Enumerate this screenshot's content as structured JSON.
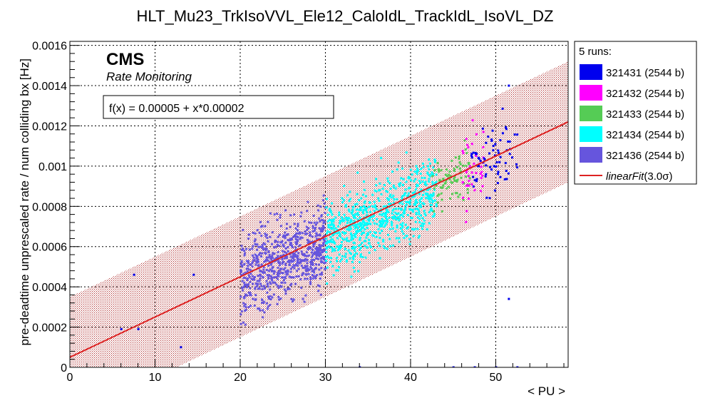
{
  "chart_data": {
    "type": "scatter",
    "title": "HLT_Mu23_TrkIsoVVL_Ele12_CaloIdL_TrackIdL_IsoVL_DZ",
    "xlabel": "< PU >",
    "ylabel": "pre-deadtime unprescaled rate / num colliding bx [Hz]",
    "xlim": [
      0,
      58.5
    ],
    "ylim": [
      0,
      0.00162
    ],
    "x_ticks": [
      0,
      10,
      20,
      30,
      40,
      50
    ],
    "y_ticks": [
      0,
      0.0002,
      0.0004,
      0.0006,
      0.0008,
      0.001,
      0.0012,
      0.0014,
      0.0016
    ],
    "y_tick_labels": [
      "0",
      "0.0002",
      "0.0004",
      "0.0006",
      "0.0008",
      "0.001",
      "0.0012",
      "0.0014",
      "0.0016"
    ],
    "grid": true,
    "cms_label": "CMS",
    "cms_sublabel": "Rate Monitoring",
    "fit_box": "f(x) = 0.00005 + x*0.00002",
    "fit": {
      "intercept": 5e-05,
      "slope": 2e-05,
      "band_sigma": 3.0,
      "band_halfwidth": 0.0003,
      "color": "#dd2222"
    },
    "legend": {
      "header": "5 runs:",
      "fit_label_prefix": "linearFit",
      "fit_label_suffix": "(3.0σ)",
      "placement": "right"
    },
    "series": [
      {
        "name": "321431 (2544 b)",
        "color": "#0000ee",
        "pu_range": [
          47,
          52.5
        ],
        "outliers": [
          [
            51.5,
            0.0014
          ],
          [
            51.5,
            0.00034
          ],
          [
            6,
            0.00019
          ],
          [
            8,
            0.00019
          ],
          [
            13,
            0.0001
          ],
          [
            7.5,
            0.00046
          ],
          [
            14.5,
            0.00046
          ],
          [
            34,
            0.0
          ],
          [
            45,
            0.0
          ],
          [
            47.5,
            0.0
          ],
          [
            50,
            0.0
          ],
          [
            52.5,
            0.0
          ]
        ]
      },
      {
        "name": "321432 (2544 b)",
        "color": "#ff00ff",
        "pu_range": [
          46,
          48.5
        ],
        "outliers": [
          [
            48.5,
            0.00117
          ]
        ]
      },
      {
        "name": "321433 (2544 b)",
        "color": "#55cc55",
        "pu_range": [
          42.5,
          47
        ],
        "outliers": []
      },
      {
        "name": "321434 (2544 b)",
        "color": "#00ffff",
        "pu_range": [
          30,
          43
        ],
        "outliers": [
          [
            36.5,
            0.00104
          ]
        ]
      },
      {
        "name": "321436 (2544 b)",
        "color": "#6655dd",
        "pu_range": [
          20,
          30
        ],
        "outliers": []
      }
    ]
  }
}
